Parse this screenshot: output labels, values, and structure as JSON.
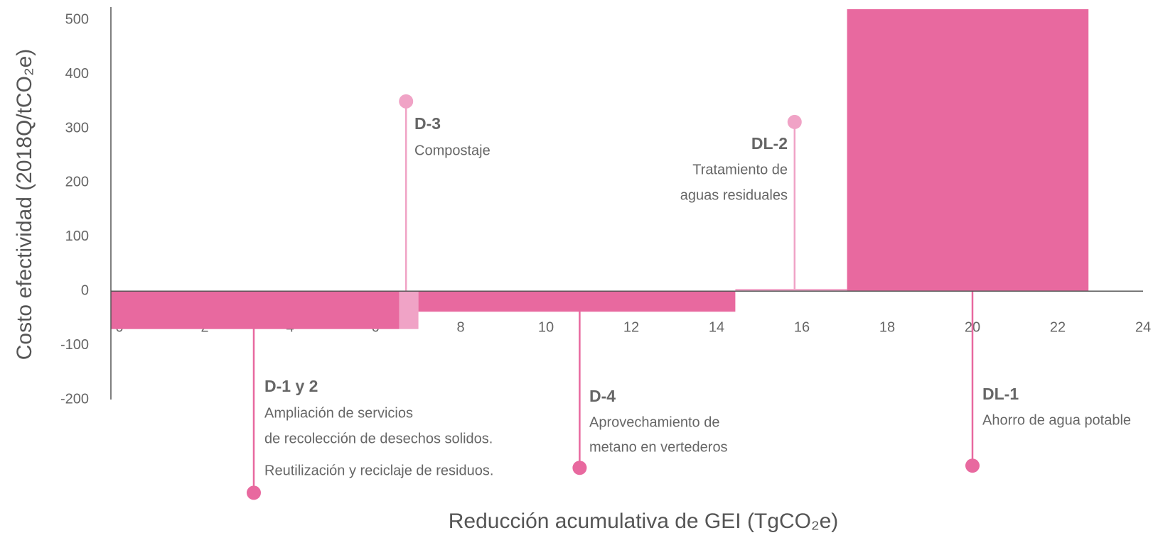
{
  "chart_data": {
    "type": "macc",
    "x_label": "Reducción acumulativa de GEI (TgCO₂e)",
    "y_label": "Costo efectividad (2018Q/tCO₂e)",
    "xlim": [
      -0.2,
      24
    ],
    "xticks": [
      0,
      2,
      4,
      6,
      8,
      10,
      12,
      14,
      16,
      18,
      20,
      22,
      24
    ],
    "ylim": [
      -200,
      520
    ],
    "yticks": [
      -200,
      -100,
      0,
      100,
      200,
      300,
      400,
      500
    ],
    "bars": [
      {
        "name": "D-1 y 2",
        "description": [
          "Ampliación de servicios",
          "de recolección de desechos solidos.",
          "Reutilización y reciclaje de residuos."
        ],
        "width": 6.76,
        "value": -70,
        "color": "#e8699f"
      },
      {
        "name": "D-3",
        "description": [
          "Compostaje"
        ],
        "width": 0.45,
        "value": -70,
        "color": "#f0a3c6"
      },
      {
        "name": "D-4",
        "description": [
          "Aprovechamiento de",
          "metano en vertederos"
        ],
        "width": 7.43,
        "value": -38,
        "color": "#e8699f"
      },
      {
        "name": "DL-2",
        "description": [
          "Tratamiento de",
          "aguas residuales"
        ],
        "width": 2.62,
        "value": 4,
        "color": "#f0a3c6"
      },
      {
        "name": "DL-1",
        "description": [
          "Ahorro de agua potable"
        ],
        "width": 5.66,
        "value": 520,
        "color": "#e8699f"
      }
    ]
  }
}
